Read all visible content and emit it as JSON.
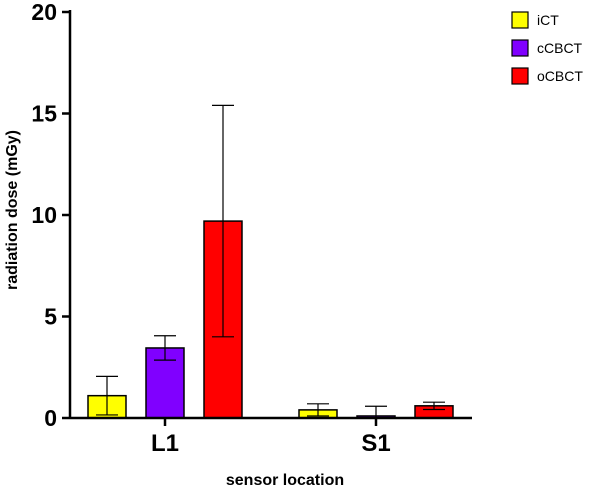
{
  "chart_data": {
    "type": "bar",
    "xlabel": "sensor location",
    "ylabel": "radiation dose (mGy)",
    "categories": [
      "L1",
      "S1"
    ],
    "ylim": [
      0,
      20
    ],
    "yticks": [
      "0",
      "5",
      "10",
      "15",
      "20"
    ],
    "grid": false,
    "legend_position": "top-right",
    "series": [
      {
        "name": "iCT",
        "color": "#ffff00",
        "values": [
          1.1,
          0.4
        ],
        "error": [
          0.95,
          0.3
        ]
      },
      {
        "name": "cCBCT",
        "color": "#8000ff",
        "values": [
          3.45,
          0.1
        ],
        "error": [
          0.6,
          0.48
        ]
      },
      {
        "name": "oCBCT",
        "color": "#ff0000",
        "values": [
          9.7,
          0.6
        ],
        "error": [
          5.7,
          0.18
        ]
      }
    ]
  }
}
